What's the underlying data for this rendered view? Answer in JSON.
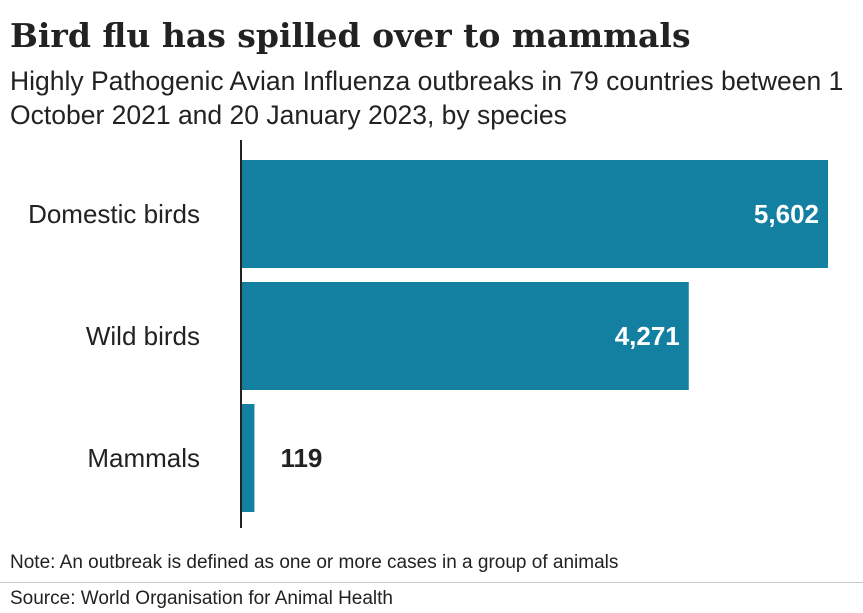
{
  "title": "Bird flu has spilled over to mammals",
  "subtitle": "Highly Pathogenic Avian Influenza outbreaks in 79 countries between 1 October 2021 and 20 January 2023, by species",
  "footer": {
    "note": "Note: An outbreak is defined as one or more cases in a group of animals",
    "source": "Source: World Organisation for Animal Health"
  },
  "chart_data": {
    "type": "bar",
    "orientation": "horizontal",
    "categories": [
      "Domestic birds",
      "Wild birds",
      "Mammals"
    ],
    "values": [
      5602,
      4271,
      119
    ],
    "value_labels": [
      "5,602",
      "4,271",
      "119"
    ],
    "bar_color": "#1380a1",
    "value_label_color_inside": "#ffffff",
    "value_label_color_outside": "#222222",
    "axis_color": "#222222",
    "grid": false
  }
}
